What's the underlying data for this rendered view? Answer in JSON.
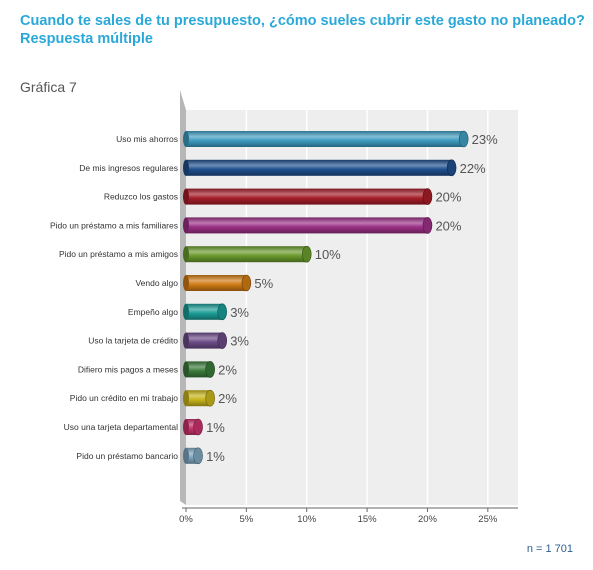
{
  "header": {
    "title_line1": "Cuando te sales de tu presupuesto, ¿cómo sueles cubrir este gasto no planeado?",
    "title_line2": "Respuesta múltiple",
    "chart_label": "Gráfica 7"
  },
  "footer": {
    "sample": "n = 1 701"
  },
  "colors": {
    "plot_bg": "#eeeeee",
    "grid": "#ffffff",
    "left_wall": "#b7b7b7"
  },
  "chart_data": {
    "type": "bar",
    "orientation": "horizontal",
    "categories": [
      "Uso mis ahorros",
      "De mis ingresos regulares",
      "Reduzco los gastos",
      "Pido un préstamo a mis familiares",
      "Pido un préstamo a mis amigos",
      "Vendo algo",
      "Empeño algo",
      "Uso la tarjeta de crédito",
      "Difiero mis pagos a meses",
      "Pido un crédito en mi trabajo",
      "Uso una tarjeta departamental",
      "Pido un préstamo bancario"
    ],
    "values": [
      23,
      22,
      20,
      20,
      10,
      5,
      3,
      3,
      2,
      2,
      1,
      1
    ],
    "value_labels": [
      "23%",
      "22%",
      "20%",
      "20%",
      "10%",
      "5%",
      "3%",
      "3%",
      "2%",
      "2%",
      "1%",
      "1%"
    ],
    "bar_colors": [
      "#3e9cc0",
      "#1e4f8c",
      "#a51d28",
      "#9b2f85",
      "#6a9a2c",
      "#cf7a14",
      "#1a9b95",
      "#6b4a86",
      "#3a7a3a",
      "#c6b41a",
      "#c8336b",
      "#7ea6bf"
    ],
    "x_ticks": [
      "0%",
      "5%",
      "10%",
      "15%",
      "20%",
      "25%"
    ],
    "xlim": [
      0,
      27.5
    ],
    "grid": true
  }
}
